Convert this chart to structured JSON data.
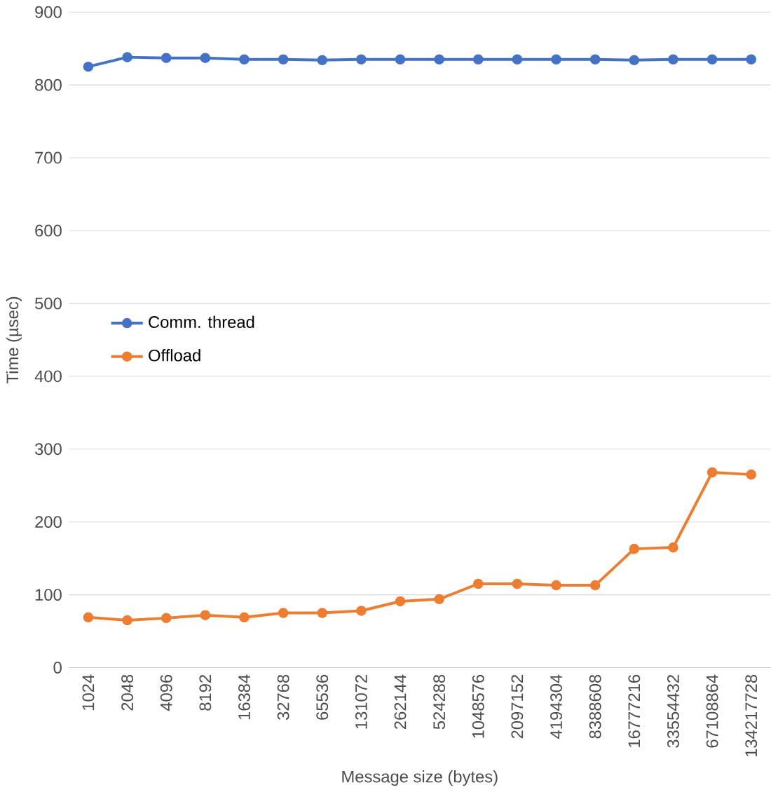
{
  "chart_data": {
    "type": "line",
    "xlabel": "Message size (bytes)",
    "ylabel": "Time (µsec)",
    "categories": [
      "1024",
      "2048",
      "4096",
      "8192",
      "16384",
      "32768",
      "65536",
      "131072",
      "262144",
      "524288",
      "1048576",
      "2097152",
      "4194304",
      "8388608",
      "16777216",
      "33554432",
      "67108864",
      "134217728"
    ],
    "series": [
      {
        "name": "Comm. thread",
        "color": "#4472c4",
        "values": [
          825,
          838,
          837,
          837,
          835,
          835,
          834,
          835,
          835,
          835,
          835,
          835,
          835,
          835,
          834,
          835,
          835,
          835
        ]
      },
      {
        "name": "Offload",
        "color": "#ed7d31",
        "values": [
          69,
          65,
          68,
          72,
          69,
          75,
          75,
          78,
          91,
          94,
          115,
          115,
          113,
          113,
          163,
          165,
          268,
          265
        ]
      }
    ],
    "ylim": [
      0,
      900
    ],
    "yticks": [
      0,
      100,
      200,
      300,
      400,
      500,
      600,
      700,
      800,
      900
    ],
    "grid": "y",
    "legend": "left",
    "marker": "circle"
  }
}
